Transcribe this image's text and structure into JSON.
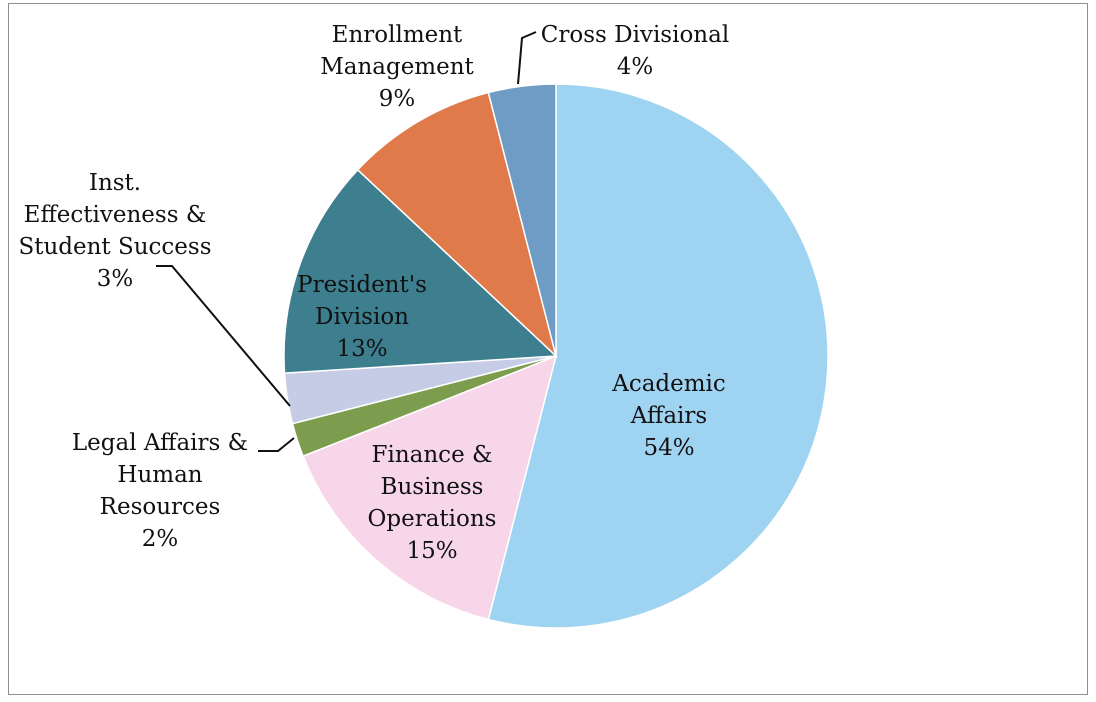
{
  "chart_data": {
    "type": "pie",
    "title": "",
    "slices": [
      {
        "label": "Academic Affairs",
        "lines": [
          "Academic",
          "Affairs"
        ],
        "value": 54,
        "pct_label": "54%",
        "color": "#9fd3f2"
      },
      {
        "label": "Finance & Business Operations",
        "lines": [
          "Finance &",
          "Business",
          "Operations"
        ],
        "value": 15,
        "pct_label": "15%",
        "color": "#f8d6ea"
      },
      {
        "label": "Legal Affairs & Human Resources",
        "lines": [
          "Legal Affairs &",
          "Human",
          "Resources"
        ],
        "value": 2,
        "pct_label": "2%",
        "color": "#7c9c4e"
      },
      {
        "label": "Inst. Effectiveness & Student Success",
        "lines": [
          "Inst.",
          "Effectiveness &",
          "Student Success"
        ],
        "value": 3,
        "pct_label": "3%",
        "color": "#c6cce6"
      },
      {
        "label": "President's Division",
        "lines": [
          "President's",
          "Division"
        ],
        "value": 13,
        "pct_label": "13%",
        "color": "#3d7f8e"
      },
      {
        "label": "Enrollment Management",
        "lines": [
          "Enrollment",
          "Management"
        ],
        "value": 9,
        "pct_label": "9%",
        "color": "#e07a4a"
      },
      {
        "label": "Cross Divisional",
        "lines": [
          "Cross Divisional"
        ],
        "value": 4,
        "pct_label": "4%",
        "color": "#6f9cc4"
      }
    ]
  }
}
